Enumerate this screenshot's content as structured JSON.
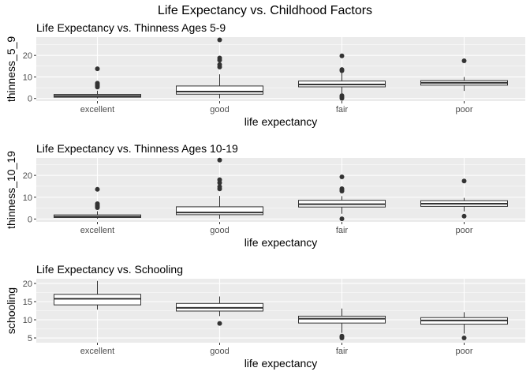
{
  "figure": {
    "title": "Life Expectancy vs. Childhood Factors"
  },
  "chart_data": [
    {
      "type": "box",
      "title": "Life Expectancy vs. Thinness Ages 5-9",
      "xlabel": "life expectancy",
      "ylabel": "thinness_5_9",
      "categories": [
        "excellent",
        "good",
        "fair",
        "poor"
      ],
      "ylim": [
        -1.2,
        28.5
      ],
      "yticks": [
        0,
        10,
        20
      ],
      "grid": true,
      "boxes": [
        {
          "category": "excellent",
          "whisker_low": 0.1,
          "q1": 0.6,
          "median": 1.2,
          "q3": 1.9,
          "whisker_high": 3.6,
          "outliers": [
            5.3,
            5.9,
            6.5,
            7.1,
            13.8
          ]
        },
        {
          "category": "good",
          "whisker_low": 0.1,
          "q1": 2.0,
          "median": 3.2,
          "q3": 5.8,
          "whisker_high": 11.2,
          "outliers": [
            14.6,
            15.7,
            17.8,
            18.8,
            27.2
          ]
        },
        {
          "category": "fair",
          "whisker_low": 2.4,
          "q1": 5.4,
          "median": 6.5,
          "q3": 8.1,
          "whisker_high": 12.1,
          "outliers": [
            0.1,
            0.7,
            1.3,
            12.9,
            13.4,
            19.8
          ]
        },
        {
          "category": "poor",
          "whisker_low": 3.5,
          "q1": 6.2,
          "median": 7.3,
          "q3": 8.3,
          "whisker_high": 10.0,
          "outliers": [
            17.5
          ]
        }
      ]
    },
    {
      "type": "box",
      "title": "Life Expectancy vs. Thinness Ages 10-19",
      "xlabel": "life expectancy",
      "ylabel": "thinness_10_19",
      "categories": [
        "excellent",
        "good",
        "fair",
        "poor"
      ],
      "ylim": [
        -1.3,
        28.0
      ],
      "yticks": [
        0,
        10,
        20
      ],
      "grid": true,
      "boxes": [
        {
          "category": "excellent",
          "whisker_low": 0.1,
          "q1": 0.7,
          "median": 1.1,
          "q3": 1.9,
          "whisker_high": 3.6,
          "outliers": [
            5.2,
            5.8,
            6.4,
            7.0,
            13.6
          ]
        },
        {
          "category": "good",
          "whisker_low": 0.1,
          "q1": 2.0,
          "median": 3.0,
          "q3": 5.6,
          "whisker_high": 10.6,
          "outliers": [
            13.8,
            14.8,
            16.6,
            18.0,
            27.0
          ]
        },
        {
          "category": "fair",
          "whisker_low": 2.4,
          "q1": 5.5,
          "median": 6.8,
          "q3": 8.6,
          "whisker_high": 10.5,
          "outliers": [
            0.1,
            12.8,
            13.3,
            13.9,
            19.3
          ]
        },
        {
          "category": "poor",
          "whisker_low": 3.5,
          "q1": 5.8,
          "median": 7.0,
          "q3": 8.4,
          "whisker_high": 9.7,
          "outliers": [
            1.3,
            17.4
          ]
        }
      ]
    },
    {
      "type": "box",
      "title": "Life Expectancy vs. Schooling",
      "xlabel": "life expectancy",
      "ylabel": "schooling",
      "categories": [
        "excellent",
        "good",
        "fair",
        "poor"
      ],
      "ylim": [
        3.7,
        21.3
      ],
      "yticks": [
        5,
        10,
        15,
        20
      ],
      "grid": true,
      "boxes": [
        {
          "category": "excellent",
          "whisker_low": 12.8,
          "q1": 14.1,
          "median": 15.8,
          "q3": 17.0,
          "whisker_high": 20.7,
          "outliers": []
        },
        {
          "category": "good",
          "whisker_low": 11.0,
          "q1": 12.4,
          "median": 13.3,
          "q3": 14.5,
          "whisker_high": 16.4,
          "outliers": [
            9.0
          ]
        },
        {
          "category": "fair",
          "whisker_low": 6.4,
          "q1": 9.1,
          "median": 10.3,
          "q3": 11.0,
          "whisker_high": 13.1,
          "outliers": [
            5.0,
            5.3,
            5.5
          ]
        },
        {
          "category": "poor",
          "whisker_low": 6.2,
          "q1": 8.8,
          "median": 9.8,
          "q3": 10.6,
          "whisker_high": 12.1,
          "outliers": [
            5.0
          ]
        }
      ]
    }
  ]
}
